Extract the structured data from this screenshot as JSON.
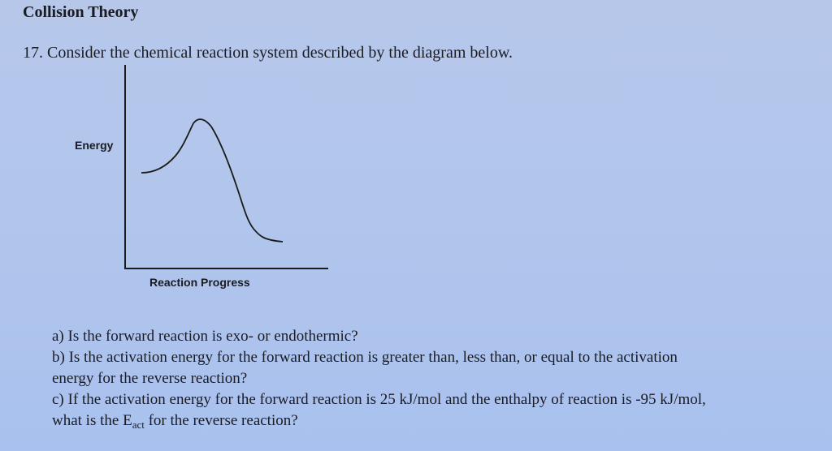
{
  "title": "Collision Theory",
  "question": {
    "number": "17.",
    "text": "Consider the chemical reaction system described by the diagram below."
  },
  "diagram": {
    "y_axis_label": "Energy",
    "x_axis_label": "Reaction Progress"
  },
  "parts": {
    "a": "a) Is the forward reaction is exo- or endothermic?",
    "b_line1": "b) Is the activation energy for the forward reaction is greater than, less than, or equal to the activation",
    "b_line2": "energy for the reverse reaction?",
    "c_line1": "c) If the activation energy for the forward reaction is 25 kJ/mol and the enthalpy of reaction is -95 kJ/mol,",
    "c_line2_before": "what is the E",
    "c_line2_sub": "act",
    "c_line2_after": " for the reverse reaction?"
  }
}
